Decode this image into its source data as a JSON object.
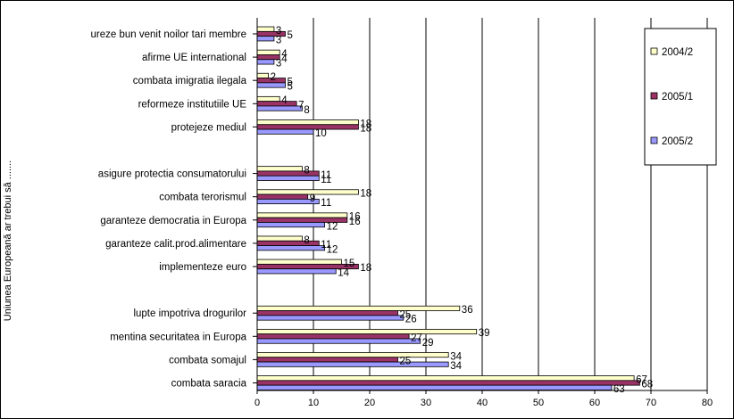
{
  "chart_data": {
    "type": "bar",
    "orientation": "horizontal",
    "ylabel": "Uniunea Europeană ar trebui să .......",
    "xlim": [
      0,
      80
    ],
    "x_ticks": [
      0,
      10,
      20,
      30,
      40,
      50,
      60,
      70,
      80
    ],
    "grid": "vertical",
    "legend_position": "right",
    "series": [
      {
        "name": "2004/2",
        "color": "#FFFFCC"
      },
      {
        "name": "2005/1",
        "color": "#993366"
      },
      {
        "name": "2005/2",
        "color": "#9999FF"
      }
    ],
    "categories": [
      {
        "label": "ureze bun venit noilor tari membre",
        "values": [
          3,
          5,
          3
        ]
      },
      {
        "label": "afirme UE international",
        "values": [
          4,
          4,
          3
        ]
      },
      {
        "label": "combata imigratia ilegala",
        "values": [
          2,
          5,
          5
        ]
      },
      {
        "label": "reformeze institutiile UE",
        "values": [
          4,
          7,
          8
        ]
      },
      {
        "label": "protejeze mediul",
        "values": [
          18,
          18,
          10
        ]
      },
      {
        "label": "",
        "values": [
          null,
          null,
          null
        ]
      },
      {
        "label": "asigure protectia consumatorului",
        "values": [
          8,
          11,
          11
        ]
      },
      {
        "label": "combata terorismul",
        "values": [
          18,
          9,
          11
        ]
      },
      {
        "label": "garanteze democratia in Europa",
        "values": [
          16,
          16,
          12
        ]
      },
      {
        "label": "garanteze calit.prod.alimentare",
        "values": [
          8,
          11,
          12
        ]
      },
      {
        "label": "implementeze euro",
        "values": [
          15,
          18,
          14
        ]
      },
      {
        "label": "",
        "values": [
          null,
          null,
          null
        ]
      },
      {
        "label": "lupte impotriva drogurilor",
        "values": [
          36,
          25,
          26
        ]
      },
      {
        "label": "mentina securitatea in Europa",
        "values": [
          39,
          27,
          29
        ]
      },
      {
        "label": "combata somajul",
        "values": [
          34,
          25,
          34
        ]
      },
      {
        "label": "combata saracia",
        "values": [
          67,
          68,
          63
        ]
      }
    ]
  }
}
